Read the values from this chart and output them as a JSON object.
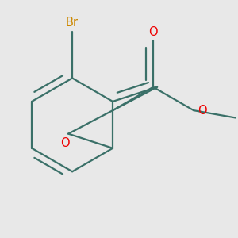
{
  "background_color": "#e8e8e8",
  "bond_color": "#3a7068",
  "bond_width": 1.6,
  "atom_colors": {
    "Br": "#cc8800",
    "O": "#ee0000"
  },
  "font_size": 10.5
}
